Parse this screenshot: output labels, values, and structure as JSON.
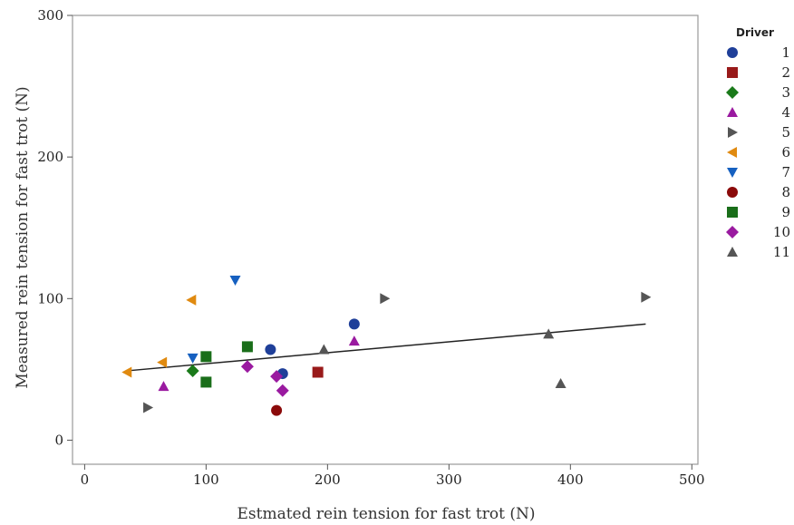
{
  "chart_data": {
    "type": "scatter",
    "xlabel": "Estmated rein tension for fast trot (N)",
    "ylabel": "Measured rein tension for fast trot (N)",
    "xlim": [
      -10,
      505
    ],
    "ylim": [
      -17,
      300
    ],
    "xticks": [
      0,
      100,
      200,
      300,
      400,
      500
    ],
    "yticks": [
      0,
      100,
      200,
      300
    ],
    "xtick_labels": [
      "0",
      "100",
      "200",
      "300",
      "400",
      "500"
    ],
    "ytick_labels": [
      "0",
      "100",
      "200",
      "300"
    ],
    "grid": false,
    "legend_title": "Driver",
    "legend_position": "right",
    "series": [
      {
        "name": "1",
        "marker": "circle",
        "color": "#1f3f99",
        "points": [
          [
            153,
            64
          ],
          [
            163,
            47
          ],
          [
            222,
            82
          ]
        ]
      },
      {
        "name": "2",
        "marker": "square",
        "color": "#991a1a",
        "points": [
          [
            192,
            48
          ]
        ]
      },
      {
        "name": "3",
        "marker": "diamond",
        "color": "#1a7a1a",
        "points": [
          [
            89,
            49
          ]
        ]
      },
      {
        "name": "4",
        "marker": "triangle-up",
        "color": "#9a1aa0",
        "points": [
          [
            65,
            38
          ],
          [
            222,
            70
          ]
        ]
      },
      {
        "name": "5",
        "marker": "triangle-right",
        "color": "#555555",
        "points": [
          [
            52,
            23
          ],
          [
            247,
            100
          ],
          [
            462,
            101
          ]
        ]
      },
      {
        "name": "6",
        "marker": "triangle-left",
        "color": "#e08a10",
        "points": [
          [
            35,
            48
          ],
          [
            64,
            55
          ],
          [
            88,
            99
          ]
        ]
      },
      {
        "name": "7",
        "marker": "triangle-down",
        "color": "#1660c0",
        "points": [
          [
            89,
            58
          ],
          [
            124,
            113
          ]
        ]
      },
      {
        "name": "8",
        "marker": "circle",
        "color": "#8b0a0a",
        "points": [
          [
            158,
            21
          ]
        ]
      },
      {
        "name": "9",
        "marker": "square",
        "color": "#1a6e1a",
        "points": [
          [
            100,
            59
          ],
          [
            100,
            41
          ],
          [
            134,
            66
          ]
        ]
      },
      {
        "name": "10",
        "marker": "diamond",
        "color": "#9a1aa0",
        "points": [
          [
            134,
            52
          ],
          [
            158,
            45
          ],
          [
            163,
            35
          ]
        ]
      },
      {
        "name": "11",
        "marker": "triangle-up",
        "color": "#555555",
        "points": [
          [
            197,
            64
          ],
          [
            382,
            75
          ],
          [
            392,
            40
          ]
        ]
      }
    ],
    "fit_line": {
      "x": [
        35,
        462
      ],
      "y": [
        49,
        82
      ],
      "color": "#222222"
    }
  }
}
